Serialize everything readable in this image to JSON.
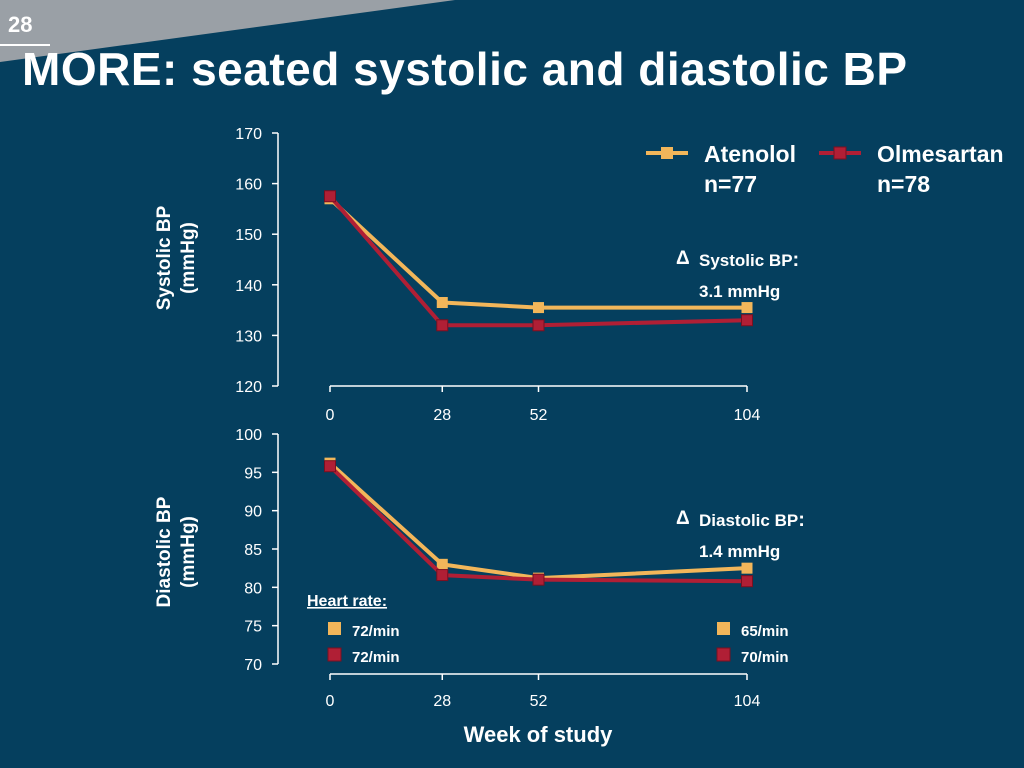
{
  "slide": {
    "number": "28",
    "title": "MORE: seated systolic and diastolic BP"
  },
  "colors": {
    "background": "#053f5e",
    "atenolol": "#f2b65a",
    "olmesartan": "#b01f35",
    "text": "#ffffff"
  },
  "legend": {
    "placement": "top-right",
    "items": [
      {
        "name": "Atenolol",
        "n": "n=77",
        "color": "#f2b65a"
      },
      {
        "name": "Olmesartan",
        "n": "n=78",
        "color": "#b01f35"
      }
    ]
  },
  "chart_data": [
    {
      "type": "line",
      "ylabel_line1": "Systolic BP",
      "ylabel_line2": "(mmHg)",
      "xlabel": "",
      "x": [
        0,
        28,
        52,
        104
      ],
      "x_ticks": [
        "0",
        "28",
        "52",
        "104"
      ],
      "ylim": [
        120,
        170
      ],
      "y_ticks": [
        "120",
        "130",
        "140",
        "150",
        "160",
        "170"
      ],
      "series": [
        {
          "name": "Atenolol",
          "values": [
            157,
            136.5,
            135.5,
            135.5
          ]
        },
        {
          "name": "Olmesartan",
          "values": [
            157.5,
            132,
            132,
            133
          ]
        }
      ],
      "annotation": {
        "symbol": "Δ",
        "line1": "Systolic BP",
        "colon": ":",
        "line2": "3.1 mmHg"
      },
      "grid": false
    },
    {
      "type": "line",
      "ylabel_line1": "Diastolic BP",
      "ylabel_line2": "(mmHg)",
      "xlabel": "Week of study",
      "x": [
        0,
        28,
        52,
        104
      ],
      "x_ticks": [
        "0",
        "28",
        "52",
        "104"
      ],
      "ylim": [
        70,
        100
      ],
      "y_ticks": [
        "70",
        "75",
        "80",
        "85",
        "90",
        "95",
        "100"
      ],
      "series": [
        {
          "name": "Atenolol",
          "values": [
            96.2,
            83,
            81.2,
            82.5
          ]
        },
        {
          "name": "Olmesartan",
          "values": [
            95.8,
            81.6,
            81,
            80.8
          ]
        }
      ],
      "annotation": {
        "symbol": "Δ",
        "line1": "Diastolic BP",
        "colon": ":",
        "line2": "1.4 mmHg"
      },
      "grid": false
    }
  ],
  "heart_rate": {
    "title": "Heart rate:",
    "baseline": [
      {
        "series": "Atenolol",
        "value": "72/min"
      },
      {
        "series": "Olmesartan",
        "value": "72/min"
      }
    ],
    "week104": [
      {
        "series": "Atenolol",
        "value": "65/min"
      },
      {
        "series": "Olmesartan",
        "value": "70/min"
      }
    ]
  }
}
